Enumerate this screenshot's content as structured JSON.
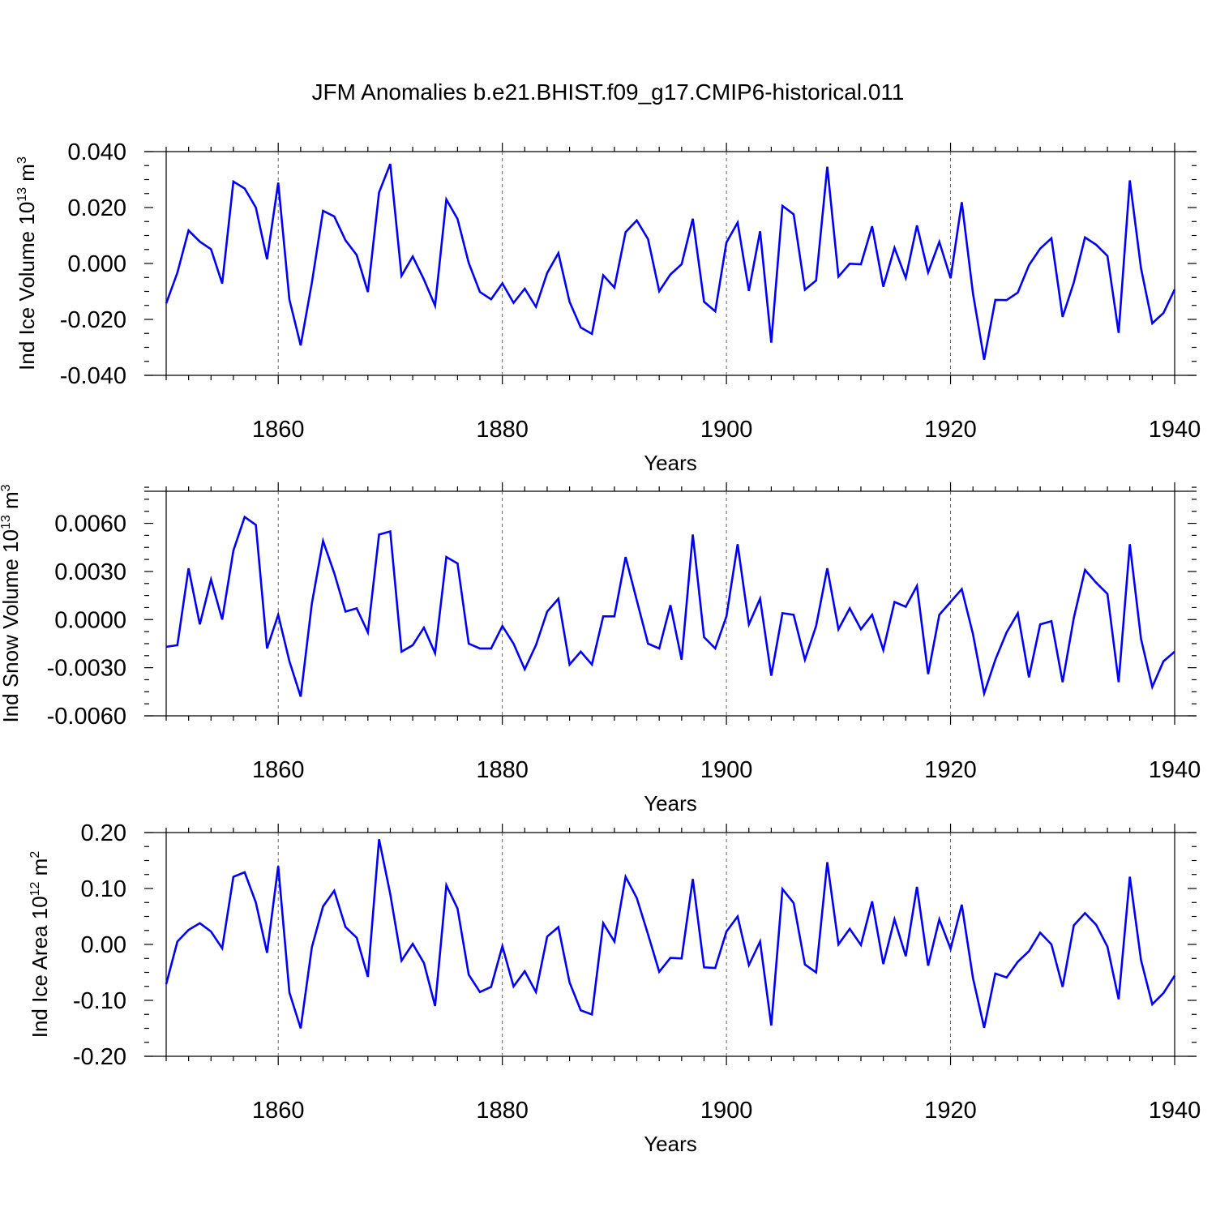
{
  "title": "JFM Anomalies b.e21.BHIST.f09_g17.CMIP6-historical.011",
  "line_color": "#0000ff",
  "chart_data": [
    {
      "type": "line",
      "ylabel": "Ind Ice Volume 10",
      "ylabel_sup": "13",
      "ylabel_unit": " m",
      "ylabel_unit_sup": "3",
      "xlabel": "Years",
      "xlim": [
        1850,
        1940
      ],
      "ylim": [
        -0.04,
        0.04
      ],
      "xticks": [
        1860,
        1880,
        1900,
        1920,
        1940
      ],
      "xtick_labels": [
        "1860",
        "1880",
        "1900",
        "1920",
        "1940"
      ],
      "yticks": [
        0.04,
        0.02,
        0.0,
        -0.02,
        -0.04
      ],
      "ytick_labels": [
        "0.040",
        "0.020",
        "0.000",
        "-0.020",
        "-0.040"
      ],
      "y_minor_step": 0.005,
      "x_minor_step": 2,
      "grid_x": [
        1860,
        1880,
        1900,
        1920
      ],
      "series": [
        {
          "name": "Ind Ice Volume",
          "x_start": 1850,
          "values": [
            -0.0143,
            -0.0033,
            0.0118,
            0.0078,
            0.0051,
            -0.0072,
            0.0293,
            0.0268,
            0.02,
            0.0015,
            0.0289,
            -0.0129,
            -0.0293,
            -0.0069,
            0.0188,
            0.0168,
            0.0083,
            0.003,
            -0.0102,
            0.0254,
            0.0356,
            -0.0044,
            0.0025,
            -0.0057,
            -0.0151,
            0.0229,
            0.0159,
            0.0002,
            -0.0102,
            -0.0128,
            -0.0071,
            -0.0141,
            -0.009,
            -0.0155,
            -0.0034,
            0.0037,
            -0.0137,
            -0.0229,
            -0.0252,
            -0.0042,
            -0.0086,
            0.0112,
            0.0154,
            0.0087,
            -0.0099,
            -0.0039,
            -0.0003,
            0.016,
            -0.0137,
            -0.0171,
            0.0075,
            0.0146,
            -0.0098,
            0.0115,
            -0.0283,
            0.0206,
            0.0176,
            -0.0094,
            -0.0061,
            0.0346,
            -0.0047,
            -0.0001,
            -0.0003,
            0.0133,
            -0.0083,
            0.0056,
            -0.0052,
            0.0136,
            -0.0032,
            0.0077,
            -0.0053,
            0.0219,
            -0.0107,
            -0.0344,
            -0.013,
            -0.0131,
            -0.0104,
            -0.0006,
            0.0053,
            0.009,
            -0.0191,
            -0.0068,
            0.0093,
            0.0067,
            0.0027,
            -0.0248,
            0.0297,
            -0.0017,
            -0.0214,
            -0.0177,
            -0.0093
          ]
        }
      ]
    },
    {
      "type": "line",
      "ylabel": "Ind Snow Volume 10",
      "ylabel_sup": "13",
      "ylabel_unit": " m",
      "ylabel_unit_sup": "3",
      "xlabel": "Years",
      "xlim": [
        1850,
        1940
      ],
      "ylim": [
        -0.006,
        0.008
      ],
      "xticks": [
        1860,
        1880,
        1900,
        1920,
        1940
      ],
      "xtick_labels": [
        "1860",
        "1880",
        "1900",
        "1920",
        "1940"
      ],
      "yticks": [
        0.006,
        0.003,
        0.0,
        -0.003,
        -0.006
      ],
      "ytick_labels": [
        "0.0060",
        "0.0030",
        "0.0000",
        "-0.0030",
        "-0.0060"
      ],
      "y_minor_step": 0.00075,
      "x_minor_step": 2,
      "grid_x": [
        1860,
        1880,
        1900,
        1920
      ],
      "series": [
        {
          "name": "Ind Snow Volume",
          "x_start": 1850,
          "values": [
            -0.0017,
            -0.0016,
            0.0032,
            -0.0003,
            0.0025,
            -0.0,
            0.0043,
            0.0064,
            0.0059,
            -0.0018,
            0.0003,
            -0.0026,
            -0.0048,
            0.001,
            0.0049,
            0.0029,
            0.0005,
            0.0007,
            -0.0008,
            0.0053,
            0.0055,
            -0.002,
            -0.0016,
            -0.0005,
            -0.0021,
            0.0039,
            0.0035,
            -0.0015,
            -0.0018,
            -0.0018,
            -0.0004,
            -0.0015,
            -0.0031,
            -0.0016,
            0.0005,
            0.0013,
            -0.0028,
            -0.002,
            -0.0028,
            0.0002,
            0.0002,
            0.0039,
            0.0012,
            -0.0015,
            -0.0018,
            0.0009,
            -0.0025,
            0.0053,
            -0.0011,
            -0.0018,
            0.0002,
            0.0047,
            -0.0003,
            0.0013,
            -0.0035,
            0.0004,
            0.0003,
            -0.0025,
            -0.0004,
            0.0032,
            -0.0006,
            0.0007,
            -0.0006,
            0.0003,
            -0.0019,
            0.0011,
            0.0008,
            0.0021,
            -0.0034,
            0.0003,
            0.0011,
            0.0019,
            -0.0009,
            -0.0046,
            -0.0025,
            -0.0008,
            0.0004,
            -0.0036,
            -0.0003,
            -0.0001,
            -0.0039,
            0.0001,
            0.0031,
            0.0023,
            0.0016,
            -0.0039,
            0.0047,
            -0.0012,
            -0.0042,
            -0.0026,
            -0.002
          ]
        }
      ]
    },
    {
      "type": "line",
      "ylabel": "Ind Ice Area 10",
      "ylabel_sup": "12",
      "ylabel_unit": " m",
      "ylabel_unit_sup": "2",
      "xlabel": "Years",
      "xlim": [
        1850,
        1940
      ],
      "ylim": [
        -0.2,
        0.2
      ],
      "xticks": [
        1860,
        1880,
        1900,
        1920,
        1940
      ],
      "xtick_labels": [
        "1860",
        "1880",
        "1900",
        "1920",
        "1940"
      ],
      "yticks": [
        0.2,
        0.1,
        0.0,
        -0.1,
        -0.2
      ],
      "ytick_labels": [
        "0.20",
        "0.10",
        "0.00",
        "-0.10",
        "-0.20"
      ],
      "y_minor_step": 0.025,
      "x_minor_step": 2,
      "grid_x": [
        1860,
        1880,
        1900,
        1920
      ],
      "series": [
        {
          "name": "Ind Ice Area",
          "x_start": 1850,
          "values": [
            -0.071,
            0.005,
            0.026,
            0.038,
            0.023,
            -0.007,
            0.121,
            0.129,
            0.075,
            -0.015,
            0.14,
            -0.086,
            -0.15,
            -0.005,
            0.068,
            0.096,
            0.031,
            0.012,
            -0.058,
            0.188,
            0.09,
            -0.029,
            0.001,
            -0.033,
            -0.11,
            0.106,
            0.064,
            -0.054,
            -0.085,
            -0.076,
            -0.003,
            -0.075,
            -0.048,
            -0.085,
            0.014,
            0.031,
            -0.068,
            -0.118,
            -0.125,
            0.038,
            0.005,
            0.121,
            0.083,
            0.018,
            -0.049,
            -0.024,
            -0.025,
            0.117,
            -0.041,
            -0.042,
            0.023,
            0.05,
            -0.037,
            0.005,
            -0.145,
            0.099,
            0.074,
            -0.036,
            -0.05,
            0.147,
            0.0,
            0.028,
            -0.001,
            0.077,
            -0.035,
            0.045,
            -0.021,
            0.103,
            -0.038,
            0.045,
            -0.008,
            0.071,
            -0.06,
            -0.149,
            -0.052,
            -0.059,
            -0.031,
            -0.012,
            0.021,
            0.0,
            -0.076,
            0.034,
            0.056,
            0.035,
            -0.004,
            -0.098,
            0.121,
            -0.028,
            -0.107,
            -0.087,
            -0.056
          ]
        }
      ]
    }
  ]
}
